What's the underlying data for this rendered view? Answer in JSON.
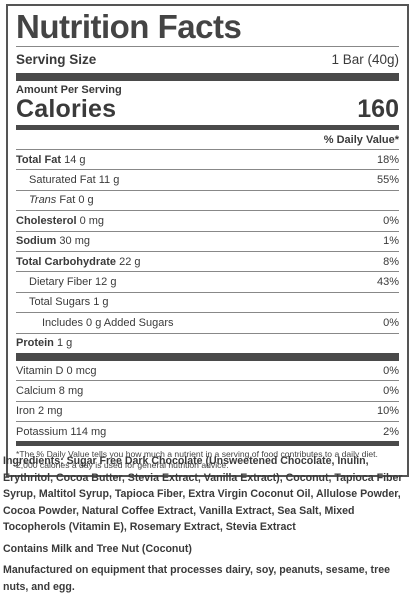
{
  "title": "Nutrition Facts",
  "serving": {
    "label": "Serving Size",
    "value": "1 Bar (40g)"
  },
  "amount_per_serving": "Amount Per Serving",
  "calories": {
    "label": "Calories",
    "value": "160"
  },
  "dv_header": "% Daily Value*",
  "nutrients": [
    {
      "name": "Total Fat",
      "amount": "14 g",
      "dv": "18%"
    },
    {
      "name": "Saturated Fat",
      "amount": "11 g",
      "dv": "55%"
    },
    {
      "name": "Trans",
      "name_rest": "Fat",
      "amount": "0 g",
      "dv": ""
    },
    {
      "name": "Cholesterol",
      "amount": "0 mg",
      "dv": "0%"
    },
    {
      "name": "Sodium",
      "amount": "30 mg",
      "dv": "1%"
    },
    {
      "name": "Total Carbohydrate",
      "amount": "22 g",
      "dv": "8%"
    },
    {
      "name": "Dietary Fiber",
      "amount": "12 g",
      "dv": "43%"
    },
    {
      "name": "Total Sugars",
      "amount": "1 g",
      "dv": ""
    },
    {
      "name": "Includes 0 g Added Sugars",
      "amount": "",
      "dv": "0%"
    },
    {
      "name": "Protein",
      "amount": "1 g",
      "dv": ""
    }
  ],
  "vitamins": [
    {
      "name": "Vitamin D",
      "amount": "0 mcg",
      "dv": "0%"
    },
    {
      "name": "Calcium",
      "amount": "8 mg",
      "dv": "0%"
    },
    {
      "name": "Iron",
      "amount": "2 mg",
      "dv": "10%"
    },
    {
      "name": "Potassium",
      "amount": "114 mg",
      "dv": "2%"
    }
  ],
  "footnote": "*The % Daily Value tells you how much a nutrient in a serving of food contributes to a daily diet. 2,000 calories a day is used for general nutrition advice.",
  "ingredients": "Ingredients: Sugar Free Dark Chocolate (Unsweetened Chocolate, Inulin, Erythritol, Cocoa Butter, Stevia Extract, Vanilla Extract), Coconut, Tapioca Fiber Syrup, Maltitol Syrup, Tapioca Fiber, Extra Virgin Coconut Oil, Allulose Powder, Cocoa Powder, Natural Coffee Extract, Vanilla Extract, Sea Salt, Mixed Tocopherols (Vitamin E), Rosemary Extract, Stevia Extract",
  "allergens": "Contains Milk and Tree Nut (Coconut)",
  "manufactured": "Manufactured on equipment that processes dairy, soy, peanuts, sesame, tree nuts, and egg."
}
